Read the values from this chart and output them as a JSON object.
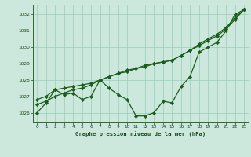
{
  "title": "Graphe pression niveau de la mer (hPa)",
  "background_color": "#cce8dc",
  "grid_color": "#99ccbb",
  "line_color": "#1a5c1a",
  "marker_color": "#1a5c1a",
  "xlim": [
    -0.5,
    23.5
  ],
  "ylim": [
    1025.4,
    1032.6
  ],
  "yticks": [
    1026,
    1027,
    1028,
    1029,
    1030,
    1031,
    1032
  ],
  "xticks": [
    0,
    1,
    2,
    3,
    4,
    5,
    6,
    7,
    8,
    9,
    10,
    11,
    12,
    13,
    14,
    15,
    16,
    17,
    18,
    19,
    20,
    21,
    22,
    23
  ],
  "series1": [
    1026.0,
    1026.6,
    1027.4,
    1027.1,
    1027.2,
    1026.8,
    1027.0,
    1028.0,
    1027.5,
    1027.1,
    1026.8,
    1025.8,
    1025.8,
    1026.0,
    1026.7,
    1026.6,
    1027.6,
    1028.2,
    1029.7,
    1030.0,
    1030.3,
    1031.0,
    1032.0,
    1032.3
  ],
  "series2": [
    1026.8,
    1027.0,
    1027.4,
    1027.5,
    1027.6,
    1027.7,
    1027.8,
    1028.0,
    1028.2,
    1028.4,
    1028.6,
    1028.7,
    1028.9,
    1029.0,
    1029.1,
    1029.2,
    1029.5,
    1029.8,
    1030.1,
    1030.4,
    1030.7,
    1031.1,
    1031.7,
    1032.3
  ],
  "series3": [
    1026.5,
    1026.7,
    1027.0,
    1027.2,
    1027.4,
    1027.5,
    1027.7,
    1028.0,
    1028.2,
    1028.4,
    1028.5,
    1028.7,
    1028.8,
    1029.0,
    1029.1,
    1029.2,
    1029.5,
    1029.8,
    1030.2,
    1030.5,
    1030.8,
    1031.2,
    1031.8,
    1032.3
  ]
}
